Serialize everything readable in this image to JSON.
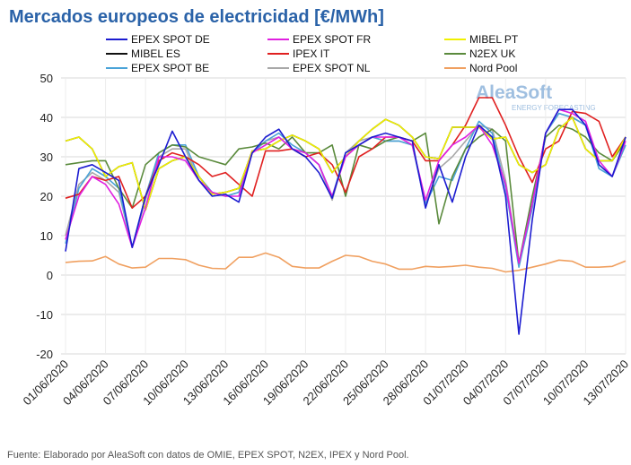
{
  "chart_data": {
    "type": "line",
    "title": "Mercados europeos de electricidad [€/MWh]",
    "source": "Fuente: Elaborado por AleaSoft con datos de OMIE, EPEX SPOT, N2EX, IPEX y Nord Pool.",
    "logo": {
      "name": "AleaSoft",
      "tagline": "ENERGY FORECASTING"
    },
    "categories": [
      "01/06/2020",
      null,
      null,
      "04/06/2020",
      null,
      null,
      "07/06/2020",
      null,
      null,
      "10/06/2020",
      null,
      null,
      "13/06/2020",
      null,
      null,
      "16/06/2020",
      null,
      null,
      "19/06/2020",
      null,
      null,
      "22/06/2020",
      null,
      null,
      "25/06/2020",
      null,
      null,
      "28/06/2020",
      null,
      null,
      "01/07/2020",
      null,
      null,
      "04/07/2020",
      null,
      null,
      "07/07/2020",
      null,
      null,
      "10/07/2020",
      null,
      null,
      "13/07/2020"
    ],
    "ylim": [
      -20,
      50
    ],
    "yticks": [
      -20,
      -10,
      0,
      10,
      20,
      30,
      40,
      50
    ],
    "grid": true,
    "series": [
      {
        "name": "EPEX SPOT DE",
        "color": "#1c1cd0",
        "values": [
          6,
          27,
          28,
          26,
          24,
          7,
          20,
          28,
          36.5,
          30,
          24,
          20,
          20.5,
          18.5,
          31,
          35,
          37,
          32,
          30,
          26,
          19.5,
          31,
          33,
          35,
          36,
          35,
          34,
          17,
          28,
          18.5,
          30,
          38,
          35,
          20,
          -15,
          14,
          36,
          42,
          42,
          38,
          28,
          25,
          35
        ]
      },
      {
        "name": "EPEX SPOT FR",
        "color": "#e020e0",
        "values": [
          9,
          20,
          25,
          23,
          18,
          7,
          17,
          30,
          30,
          29,
          24,
          21,
          20,
          20,
          31,
          33,
          35,
          32,
          31,
          28,
          20,
          30,
          33,
          35,
          35,
          35,
          33,
          19,
          29,
          33,
          35,
          38,
          33,
          23,
          3,
          18,
          36,
          42,
          41,
          39,
          29,
          25,
          34
        ]
      },
      {
        "name": "MIBEL PT",
        "color": "#f0f000",
        "values": [
          34,
          35,
          32,
          25,
          27.5,
          28.5,
          16.5,
          27,
          29,
          30,
          25,
          20.5,
          21,
          22,
          31.5,
          32,
          34,
          35.5,
          34,
          32,
          26,
          30,
          34,
          37,
          39.5,
          38,
          35,
          30,
          29.5,
          37.5,
          37.5,
          37.5,
          34.5,
          35,
          28,
          26,
          28,
          37,
          40,
          32,
          29,
          29,
          35
        ]
      },
      {
        "name": "MIBEL ES",
        "color": "#111111",
        "values": [
          34,
          35,
          32,
          25,
          27.5,
          28.5,
          16.5,
          27,
          29,
          30,
          25,
          20.5,
          21,
          22,
          31.5,
          32,
          34,
          35.5,
          34,
          32,
          26,
          30,
          34,
          37,
          39.5,
          38,
          35,
          30,
          29.5,
          37.5,
          37.5,
          37.5,
          34.5,
          35,
          28,
          26,
          28,
          37,
          40,
          32,
          29,
          29,
          35
        ]
      },
      {
        "name": "IPEX IT",
        "color": "#e02020",
        "values": [
          19.5,
          20.5,
          25,
          24,
          25,
          17,
          20,
          29,
          31,
          30,
          28,
          25,
          26,
          23,
          20,
          31.5,
          31.5,
          32,
          30,
          31,
          28,
          21,
          30,
          32,
          35,
          35,
          34,
          29,
          29,
          33,
          38,
          45,
          45,
          38,
          30,
          23.5,
          32,
          34,
          41.5,
          41,
          39,
          30,
          35
        ]
      },
      {
        "name": "N2EX UK",
        "color": "#5a8a3c",
        "values": [
          28,
          28.5,
          29,
          29,
          22,
          17,
          28,
          31,
          33,
          32.5,
          30,
          29,
          28,
          32,
          32.5,
          33.5,
          32,
          35,
          31,
          31,
          33,
          20,
          33,
          32,
          34,
          35,
          34,
          36,
          13,
          25,
          32,
          35,
          37,
          34,
          3,
          20,
          35,
          38,
          37,
          35,
          31,
          29,
          34
        ]
      },
      {
        "name": "EPEX SPOT BE",
        "color": "#4aa3d8",
        "values": [
          8,
          22,
          27,
          25,
          22,
          7,
          20,
          31,
          33,
          33,
          25,
          21,
          20,
          21,
          31,
          34,
          36,
          33,
          31,
          28,
          20,
          31,
          33,
          35,
          34,
          34,
          33,
          18,
          25,
          24,
          32,
          39,
          36,
          22,
          2,
          17,
          36,
          41,
          40,
          38,
          27,
          25,
          33
        ]
      },
      {
        "name": "EPEX SPOT NL",
        "color": "#a8a8a8",
        "values": [
          10,
          23,
          26,
          24,
          21,
          7,
          19,
          30,
          32,
          32,
          24,
          21,
          20,
          21,
          31,
          34,
          35,
          32,
          31,
          28,
          19,
          31,
          34,
          35,
          34,
          34,
          33,
          18,
          27,
          30,
          34,
          38,
          37,
          24,
          3,
          18,
          36,
          41,
          40,
          38,
          28,
          25,
          33
        ]
      },
      {
        "name": "Nord Pool",
        "color": "#f0a060",
        "values": [
          3.2,
          3.5,
          3.6,
          4.7,
          2.8,
          1.8,
          2.0,
          4.2,
          4.2,
          3.9,
          2.5,
          1.7,
          1.6,
          4.5,
          4.5,
          5.6,
          4.5,
          2.2,
          1.8,
          1.8,
          3.5,
          5.0,
          4.7,
          3.5,
          2.8,
          1.5,
          1.5,
          2.2,
          2.0,
          2.2,
          2.5,
          2.0,
          1.7,
          0.8,
          1.2,
          2.0,
          2.8,
          3.8,
          3.5,
          2.0,
          2.0,
          2.2,
          3.6
        ]
      }
    ]
  }
}
